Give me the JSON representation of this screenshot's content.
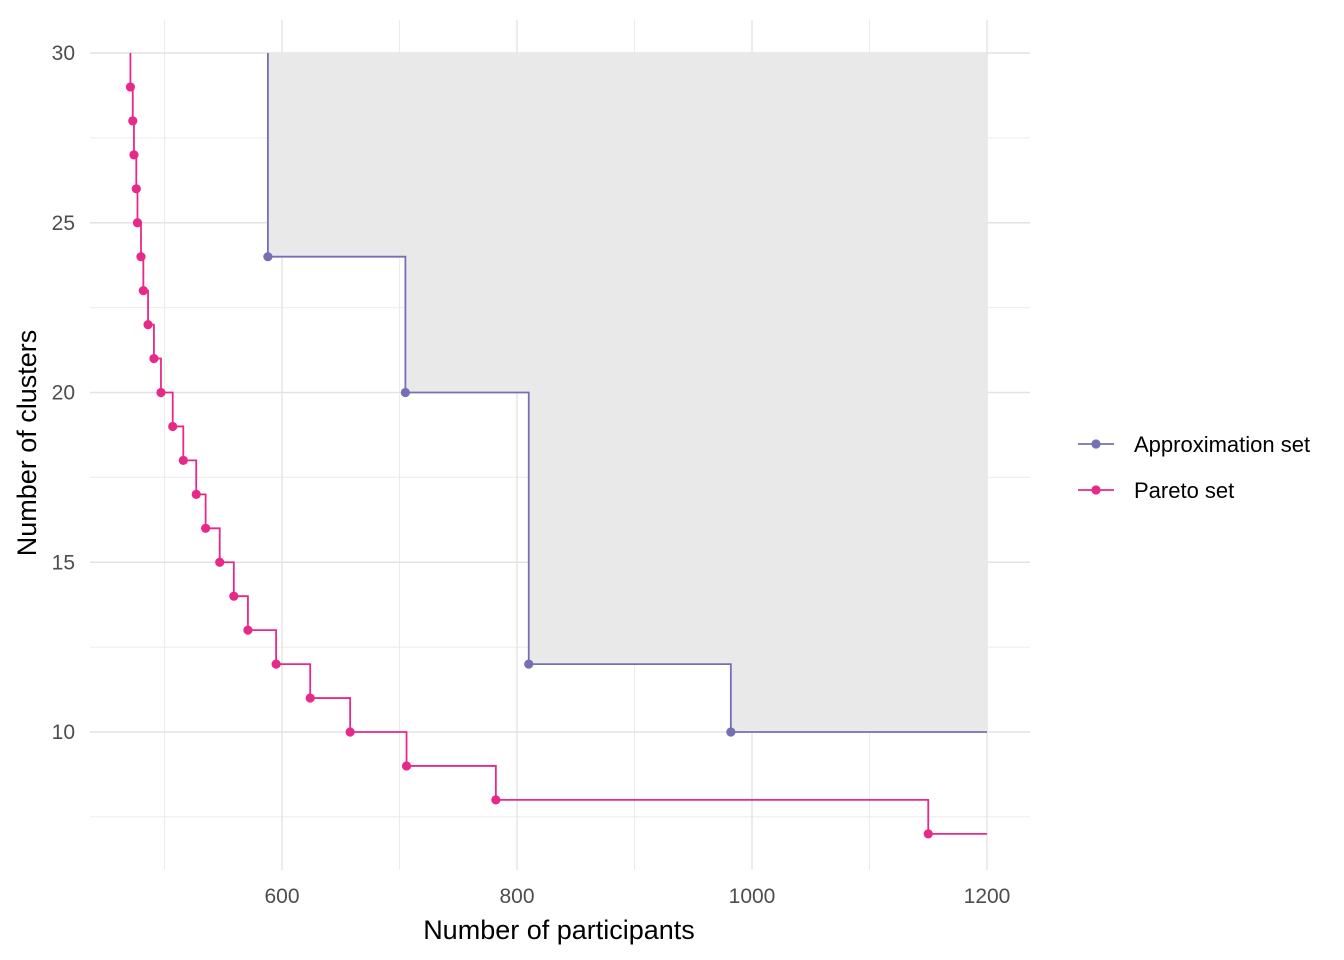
{
  "chart_data": {
    "type": "line",
    "step": true,
    "title": "",
    "xlabel": "Number of participants",
    "ylabel": "Number of clusters",
    "xlim": [
      450,
      1220
    ],
    "ylim": [
      5.5,
      30
    ],
    "xticks": [
      600,
      800,
      1000,
      1200
    ],
    "yticks": [
      10,
      15,
      20,
      25,
      30
    ],
    "grid": true,
    "legend_position": "right",
    "dominated_region": {
      "fill": "#e9e9e9",
      "bounded_by_series": "Approximation set",
      "x_max": 1200,
      "y_max": 30
    },
    "series": [
      {
        "name": "Approximation set",
        "color": "#7570b3",
        "points": [
          {
            "x": 588,
            "y": 24
          },
          {
            "x": 705,
            "y": 20
          },
          {
            "x": 810,
            "y": 12
          },
          {
            "x": 982,
            "y": 10
          }
        ],
        "line_start": {
          "x": 588,
          "y": 30
        },
        "line_end": {
          "x": 1200,
          "y": 10
        }
      },
      {
        "name": "Pareto set",
        "color": "#e7298a",
        "points": [
          {
            "x": 471,
            "y": 29
          },
          {
            "x": 473,
            "y": 28
          },
          {
            "x": 474,
            "y": 27
          },
          {
            "x": 476,
            "y": 26
          },
          {
            "x": 477,
            "y": 25
          },
          {
            "x": 480,
            "y": 24
          },
          {
            "x": 482,
            "y": 23
          },
          {
            "x": 486,
            "y": 22
          },
          {
            "x": 491,
            "y": 21
          },
          {
            "x": 497,
            "y": 20
          },
          {
            "x": 507,
            "y": 19
          },
          {
            "x": 516,
            "y": 18
          },
          {
            "x": 527,
            "y": 17
          },
          {
            "x": 535,
            "y": 16
          },
          {
            "x": 547,
            "y": 15
          },
          {
            "x": 559,
            "y": 14
          },
          {
            "x": 571,
            "y": 13
          },
          {
            "x": 595,
            "y": 12
          },
          {
            "x": 624,
            "y": 11
          },
          {
            "x": 658,
            "y": 10
          },
          {
            "x": 706,
            "y": 9
          },
          {
            "x": 782,
            "y": 8
          },
          {
            "x": 1150,
            "y": 7
          }
        ],
        "line_start": {
          "x": 471,
          "y": 30
        },
        "line_end": {
          "x": 1200,
          "y": 7
        }
      }
    ]
  }
}
